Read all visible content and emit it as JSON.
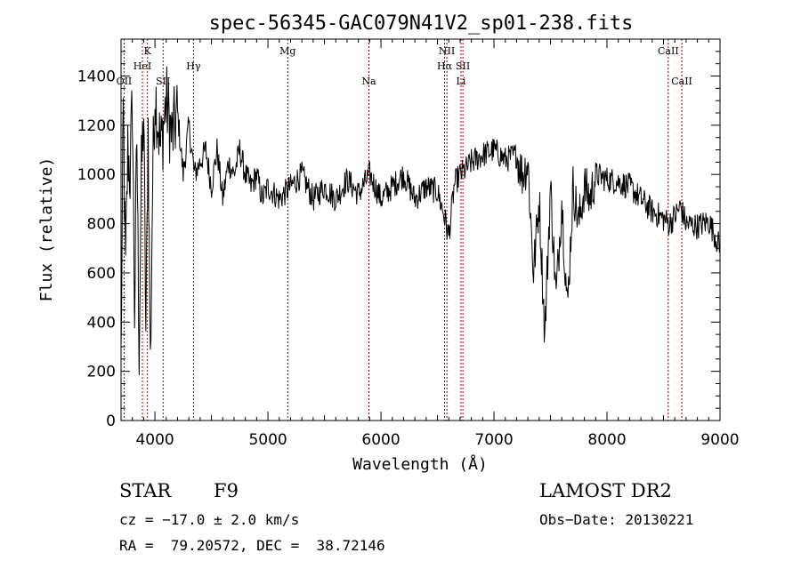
{
  "chart_data": {
    "type": "line",
    "title": "spec-56345-GAC079N41V2_sp01-238.fits",
    "xlabel": "Wavelength (Å)",
    "ylabel": "Flux (relative)",
    "xlim": [
      3700,
      9000
    ],
    "ylim": [
      0,
      1550
    ],
    "xticks": [
      4000,
      5000,
      6000,
      7000,
      8000,
      9000
    ],
    "yticks": [
      0,
      200,
      400,
      600,
      800,
      1000,
      1200,
      1400
    ],
    "grid": false,
    "line_color": "#000000",
    "marker_color": "#aa0000",
    "spectral_lines": [
      {
        "label": "OII",
        "wavelength": 3727,
        "row": 3
      },
      {
        "label": "K",
        "wavelength": 3934,
        "row": 1
      },
      {
        "label": "HeI",
        "wavelength": 3889,
        "row": 2
      },
      {
        "label": "SII",
        "wavelength": 4072,
        "row": 3
      },
      {
        "label": "Hγ",
        "wavelength": 4341,
        "row": 2
      },
      {
        "label": "Mg",
        "wavelength": 5175,
        "row": 1
      },
      {
        "label": "Na",
        "wavelength": 5893,
        "row": 3
      },
      {
        "label": "NII",
        "wavelength": 6583,
        "row": 1
      },
      {
        "label": "Hα",
        "wavelength": 6563,
        "row": 2
      },
      {
        "label": "SII",
        "wavelength": 6725,
        "row": 2
      },
      {
        "label": "Li",
        "wavelength": 6708,
        "row": 3
      },
      {
        "label": "CaII",
        "wavelength": 8542,
        "row": 1
      },
      {
        "label": "CaII",
        "wavelength": 8662,
        "row": 3
      }
    ],
    "spectrum": {
      "x": [
        3700,
        3720,
        3740,
        3760,
        3780,
        3800,
        3820,
        3840,
        3860,
        3880,
        3900,
        3920,
        3940,
        3960,
        3980,
        4000,
        4050,
        4100,
        4150,
        4200,
        4250,
        4300,
        4350,
        4400,
        4450,
        4500,
        4550,
        4600,
        4650,
        4700,
        4750,
        4800,
        4850,
        4900,
        4950,
        5000,
        5100,
        5200,
        5300,
        5400,
        5500,
        5600,
        5700,
        5800,
        5900,
        6000,
        6100,
        6200,
        6300,
        6400,
        6500,
        6550,
        6600,
        6650,
        6700,
        6750,
        6800,
        6900,
        7000,
        7100,
        7200,
        7250,
        7300,
        7350,
        7400,
        7450,
        7500,
        7550,
        7600,
        7650,
        7700,
        7750,
        7800,
        7850,
        7900,
        8000,
        8100,
        8200,
        8300,
        8400,
        8500,
        8550,
        8600,
        8650,
        8700,
        8800,
        8900,
        8950,
        9000
      ],
      "y": [
        250,
        1250,
        600,
        1100,
        1000,
        1300,
        450,
        1150,
        300,
        1000,
        1250,
        350,
        1200,
        220,
        1000,
        1350,
        1100,
        1300,
        1150,
        1250,
        1000,
        1200,
        1000,
        1050,
        1100,
        950,
        1100,
        900,
        1050,
        1000,
        1100,
        1000,
        950,
        1000,
        900,
        950,
        900,
        950,
        1000,
        900,
        950,
        900,
        980,
        920,
        1000,
        900,
        950,
        1000,
        900,
        950,
        930,
        850,
        750,
        960,
        1000,
        1020,
        1050,
        1080,
        1100,
        1060,
        1080,
        1000,
        1050,
        600,
        900,
        350,
        950,
        500,
        900,
        450,
        950,
        800,
        950,
        900,
        1000,
        980,
        970,
        950,
        900,
        850,
        820,
        800,
        830,
        870,
        800,
        790,
        810,
        760,
        700
      ]
    }
  },
  "info": {
    "object_class": "STAR",
    "subclass": "F9",
    "survey": "LAMOST DR2",
    "cz": "cz = −17.0 ± 2.0 km/s",
    "obs_date": "Obs−Date: 20130221",
    "coords": "RA =  79.20572, DEC =  38.72146"
  }
}
